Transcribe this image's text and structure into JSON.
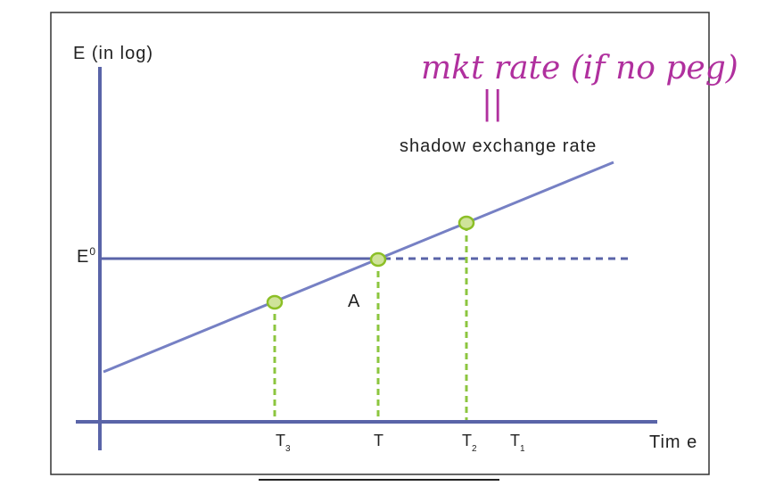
{
  "diagram": {
    "y_axis_label": "E (in log)",
    "x_axis_label": "Tim e",
    "peg_level_label": "E",
    "peg_level_superscript": "0",
    "curve_label": "shadow exchange rate",
    "point_label": "A",
    "ticks": [
      {
        "main": "T",
        "sub": "3"
      },
      {
        "main": "T",
        "sub": ""
      },
      {
        "main": "T",
        "sub": "2"
      },
      {
        "main": "T",
        "sub": "1"
      }
    ],
    "annotation": {
      "text": "mkt rate (if no peg)",
      "equals_mark": "||"
    }
  },
  "colors": {
    "axis": "#5a64a8",
    "line": "#7680c4",
    "marker_fill": "#cfe39a",
    "marker_stroke": "#8cbf26",
    "guide": "#8cc63f",
    "handwriting": "#b0309e"
  }
}
